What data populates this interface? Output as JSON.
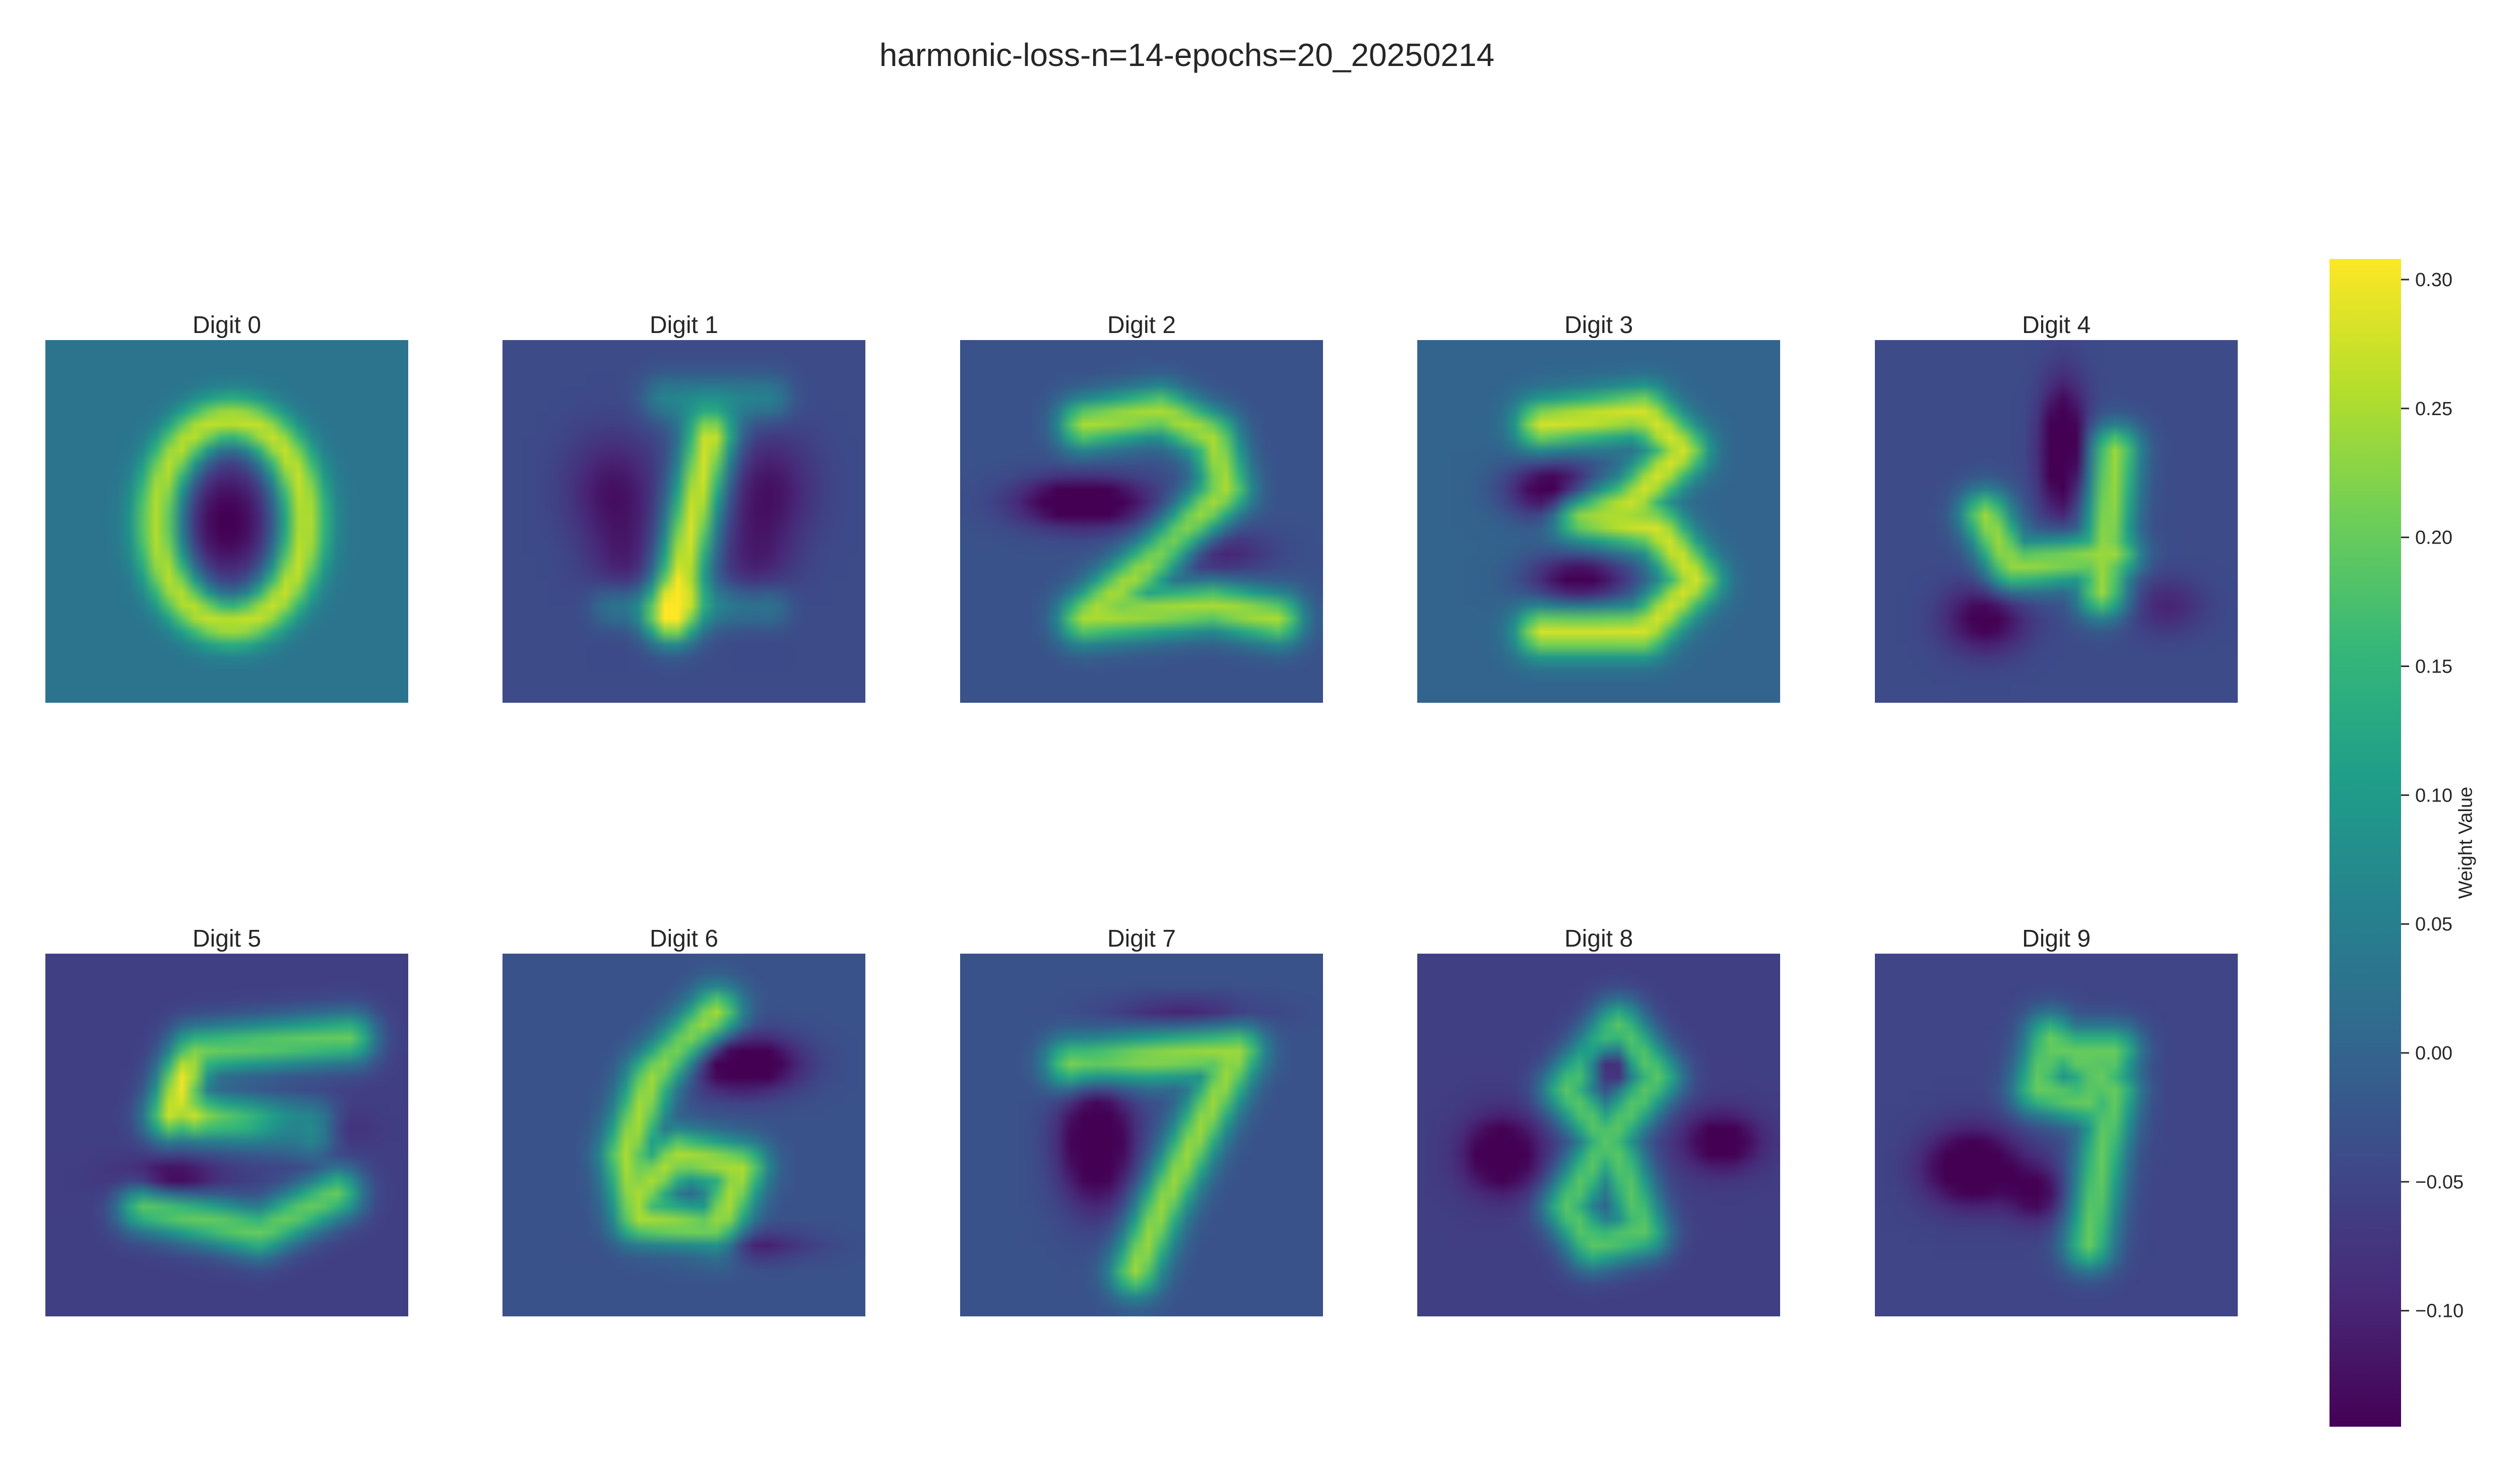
{
  "figure": {
    "title": "harmonic-loss-n=14-epochs=20_20250214"
  },
  "chart_data": {
    "type": "heatmap",
    "title": "harmonic-loss-n=14-epochs=20_20250214",
    "colormap": "viridis",
    "grid_size": [
      28,
      28
    ],
    "panels": [
      {
        "title": "Digit 0",
        "digit": 0
      },
      {
        "title": "Digit 1",
        "digit": 1
      },
      {
        "title": "Digit 2",
        "digit": 2
      },
      {
        "title": "Digit 3",
        "digit": 3
      },
      {
        "title": "Digit 4",
        "digit": 4
      },
      {
        "title": "Digit 5",
        "digit": 5
      },
      {
        "title": "Digit 6",
        "digit": 6
      },
      {
        "title": "Digit 7",
        "digit": 7
      },
      {
        "title": "Digit 8",
        "digit": 8
      },
      {
        "title": "Digit 9",
        "digit": 9
      }
    ],
    "colorbar": {
      "label": "Weight Value",
      "vmin": -0.145,
      "vmax": 0.308,
      "ticks": [
        0.3,
        0.25,
        0.2,
        0.15,
        0.1,
        0.05,
        0.0,
        -0.05,
        -0.1
      ],
      "tick_labels": [
        "0.30",
        "0.25",
        "0.20",
        "0.15",
        "0.10",
        "0.05",
        "0.00",
        "−0.05",
        "−0.10"
      ]
    },
    "colors": [
      "#440154",
      "#482878",
      "#3e4989",
      "#31688e",
      "#26828e",
      "#1f9e89",
      "#35b779",
      "#6ece58",
      "#b5de2b",
      "#fde725"
    ]
  }
}
